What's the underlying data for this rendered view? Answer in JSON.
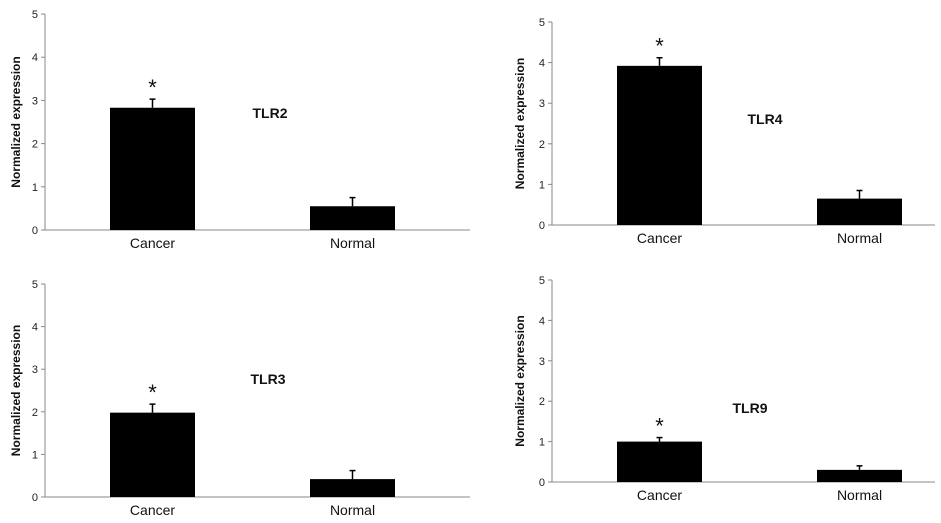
{
  "chart_data": [
    {
      "type": "bar",
      "title": "TLR2",
      "ylabel": "Normalized expression",
      "ylim": [
        0,
        5
      ],
      "yticks": [
        "0",
        "1",
        "2",
        "3",
        "4",
        "5"
      ],
      "categories": [
        "Cancer",
        "Normal"
      ],
      "values": [
        2.83,
        0.55
      ],
      "errors": [
        0.2,
        0.2
      ],
      "annotations": [
        "*",
        ""
      ]
    },
    {
      "type": "bar",
      "title": "TLR4",
      "ylabel": "Normalized expression",
      "ylim": [
        0,
        5
      ],
      "yticks": [
        "0",
        "1",
        "2",
        "3",
        "4",
        "5"
      ],
      "categories": [
        "Cancer",
        "Normal"
      ],
      "values": [
        3.92,
        0.65
      ],
      "errors": [
        0.2,
        0.2
      ],
      "annotations": [
        "*",
        ""
      ]
    },
    {
      "type": "bar",
      "title": "TLR3",
      "ylabel": "Normalized expression",
      "ylim": [
        0,
        5
      ],
      "yticks": [
        "0",
        "1",
        "2",
        "3",
        "4",
        "5"
      ],
      "categories": [
        "Cancer",
        "Normal"
      ],
      "values": [
        1.98,
        0.42
      ],
      "errors": [
        0.2,
        0.2
      ],
      "annotations": [
        "*",
        ""
      ]
    },
    {
      "type": "bar",
      "title": "TLR9",
      "ylabel": "Normalized expression",
      "ylim": [
        0,
        5
      ],
      "yticks": [
        "0",
        "1",
        "2",
        "3",
        "4",
        "5"
      ],
      "categories": [
        "Cancer",
        "Normal"
      ],
      "values": [
        1.0,
        0.3
      ],
      "errors": [
        0.1,
        0.1
      ],
      "annotations": [
        "*",
        ""
      ]
    }
  ]
}
